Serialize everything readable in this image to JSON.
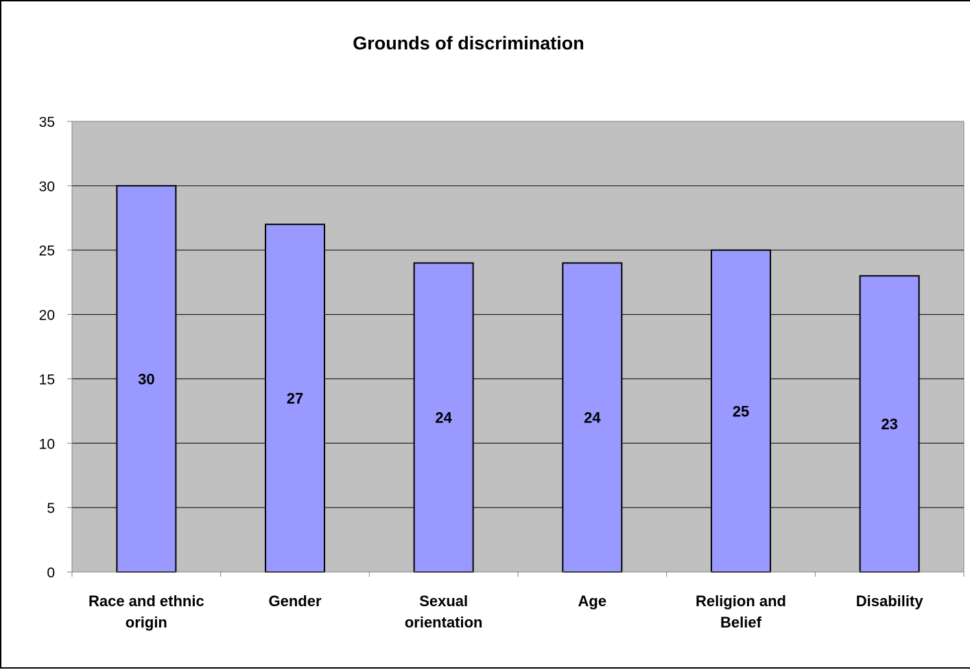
{
  "chart_data": {
    "type": "bar",
    "title": "Grounds of discrimination",
    "categories": [
      [
        "Race and ethnic",
        "origin"
      ],
      [
        "Gender"
      ],
      [
        "Sexual",
        "orientation"
      ],
      [
        "Age"
      ],
      [
        "Religion and",
        "Belief"
      ],
      [
        "Disability"
      ]
    ],
    "values": [
      30,
      27,
      24,
      24,
      25,
      23
    ],
    "data_labels": [
      "30",
      "27",
      "24",
      "24",
      "25",
      "23"
    ],
    "ylim": [
      0,
      35
    ],
    "yticks": [
      0,
      5,
      10,
      15,
      20,
      25,
      30,
      35
    ],
    "xlabel": "",
    "ylabel": "",
    "grid": true,
    "legend": "none",
    "data_label_position": "center",
    "colors": {
      "bar_fill": "#9999ff",
      "bar_stroke": "#000000",
      "plot_background": "#c0c0c0",
      "gridline": "#000000",
      "axis": "#808080"
    }
  }
}
